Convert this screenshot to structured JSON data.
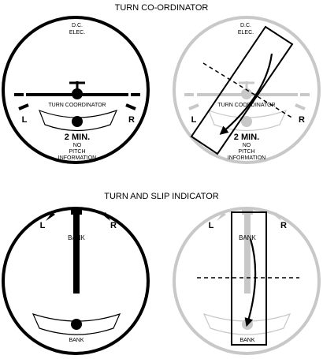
{
  "colors": {
    "ink": "#000000",
    "ghost": "#c8c8c8",
    "ghost_text": "#000000",
    "background": "#ffffff"
  },
  "turn_coordinator": {
    "title": "TURN CO-ORDINATOR",
    "left": {
      "source_line1": "D.C.",
      "source_line2": "ELEC.",
      "dial_label": "TURN COORDINATOR",
      "left_mark": "L",
      "right_mark": "R",
      "time_label": "2 MIN.",
      "note_line1": "NO",
      "note_line2": "PITCH",
      "note_line3": "INFORMATION"
    },
    "right": {
      "source_line1": "D.C.",
      "source_line2": "ELEC.",
      "dial_label": "TURN COORDINATOR",
      "left_mark": "L",
      "right_mark": "R",
      "time_label": "2 MIN.",
      "note_line1": "NO",
      "note_line2": "PITCH",
      "note_line3": "INFORMATION"
    }
  },
  "turn_slip": {
    "title": "TURN AND SLIP INDICATOR",
    "left": {
      "left_mark": "L",
      "right_mark": "R",
      "needle_label": "BANK",
      "ball_label": "BANK"
    },
    "right": {
      "left_mark": "L",
      "right_mark": "R",
      "needle_label": "BANK",
      "ball_label": "BANK"
    }
  }
}
